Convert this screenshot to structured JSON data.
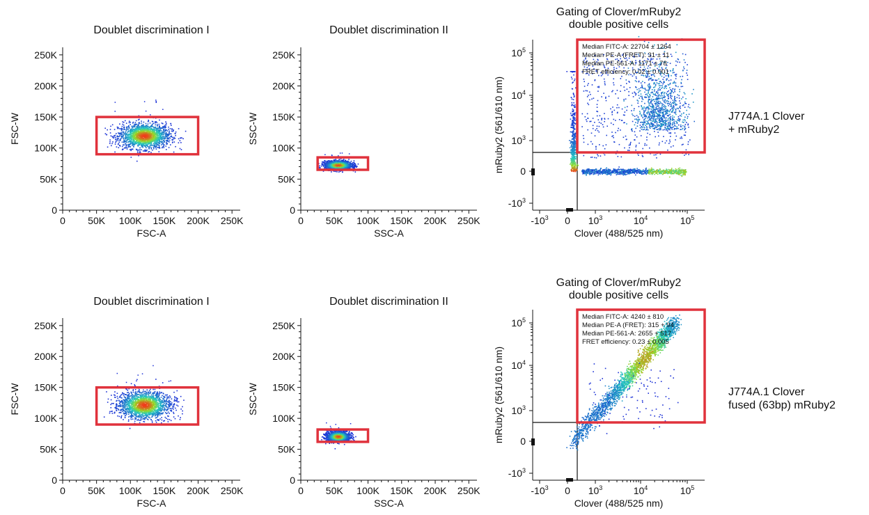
{
  "chart_data": [
    {
      "type": "scatter",
      "title": "Doublet discrimination I",
      "xlabel": "FSC-A",
      "ylabel": "FSC-W",
      "xlim": [
        0,
        262144
      ],
      "ylim": [
        0,
        262144
      ],
      "xticks": [
        "0",
        "50K",
        "100K",
        "150K",
        "200K",
        "250K"
      ],
      "yticks": [
        "0",
        "50K",
        "100K",
        "150K",
        "200K",
        "250K"
      ],
      "gate": {
        "x": [
          50000,
          200000
        ],
        "y": [
          90000,
          150000
        ]
      },
      "cloud": {
        "x_center": 120000,
        "y_center": 120000,
        "x_spread": 35000,
        "y_spread": 10000
      }
    },
    {
      "type": "scatter",
      "title": "Doublet discrimination II",
      "xlabel": "SSC-A",
      "ylabel": "SSC-W",
      "xlim": [
        0,
        262144
      ],
      "ylim": [
        0,
        262144
      ],
      "xticks": [
        "0",
        "50K",
        "100K",
        "150K",
        "200K",
        "250K"
      ],
      "yticks": [
        "0",
        "50K",
        "100K",
        "150K",
        "200K",
        "250K"
      ],
      "gate": {
        "x": [
          25000,
          100000
        ],
        "y": [
          65000,
          85000
        ]
      },
      "cloud": {
        "x_center": 55000,
        "y_center": 73000,
        "x_spread": 18000,
        "y_spread": 3500
      }
    },
    {
      "type": "scatter",
      "title": "Gating of Clover/mRuby2\ndouble positive cells",
      "xlabel": "Clover (488/525 nm)",
      "ylabel": "mRuby2 (561/610 nm)",
      "scale": "biexponential",
      "xticks": [
        "-10^3",
        "0",
        "10^3",
        "10^4",
        "10^5"
      ],
      "yticks": [
        "-10^3",
        "0",
        "10^3",
        "10^4",
        "10^5"
      ],
      "stats": [
        "Median FITC-A: 22704 ± 1264",
        "Median PE-A (FRET): 31 ± 11",
        "Median PE-561-A: 1171 ± 78",
        "FRET efficiency: 0.02 ± 0.001"
      ]
    },
    {
      "type": "scatter",
      "title": "Doublet discrimination I",
      "xlabel": "FSC-A",
      "ylabel": "FSC-W",
      "xlim": [
        0,
        262144
      ],
      "ylim": [
        0,
        262144
      ],
      "xticks": [
        "0",
        "50K",
        "100K",
        "150K",
        "200K",
        "250K"
      ],
      "yticks": [
        "0",
        "50K",
        "100K",
        "150K",
        "200K",
        "250K"
      ],
      "gate": {
        "x": [
          50000,
          200000
        ],
        "y": [
          90000,
          150000
        ]
      },
      "cloud": {
        "x_center": 120000,
        "y_center": 122000,
        "x_spread": 35000,
        "y_spread": 11000
      }
    },
    {
      "type": "scatter",
      "title": "Doublet discrimination II",
      "xlabel": "SSC-A",
      "ylabel": "SSC-W",
      "xlim": [
        0,
        262144
      ],
      "ylim": [
        0,
        262144
      ],
      "xticks": [
        "0",
        "50K",
        "100K",
        "150K",
        "200K",
        "250K"
      ],
      "yticks": [
        "0",
        "50K",
        "100K",
        "150K",
        "200K",
        "250K"
      ],
      "gate": {
        "x": [
          25000,
          100000
        ],
        "y": [
          62000,
          82000
        ]
      },
      "cloud": {
        "x_center": 55000,
        "y_center": 71000,
        "x_spread": 15000,
        "y_spread": 4000
      }
    },
    {
      "type": "scatter",
      "title": "Gating of Clover/mRuby2\ndouble positive cells",
      "xlabel": "Clover (488/525 nm)",
      "ylabel": "mRuby2 (561/610 nm)",
      "scale": "biexponential",
      "xticks": [
        "-10^3",
        "0",
        "10^3",
        "10^4",
        "10^5"
      ],
      "yticks": [
        "-10^3",
        "0",
        "10^3",
        "10^4",
        "10^5"
      ],
      "stats": [
        "Median FITC-A: 4240 ± 810",
        "Median PE-A (FRET): 315 + 94",
        "Median PE-561-A: 2655 + 517",
        "FRET efficiency: 0.23 ± 0.005"
      ]
    }
  ],
  "row_labels": [
    [
      "J774A.1 Clover",
      "+ mRuby2"
    ],
    [
      "J774A.1 Clover",
      "fused (63bp) mRuby2"
    ]
  ],
  "colors": {
    "gate": "#e0323c",
    "density_low": "#1a2fd6",
    "density_mid": "#22c8c0",
    "density_high": "#f23a1a"
  }
}
